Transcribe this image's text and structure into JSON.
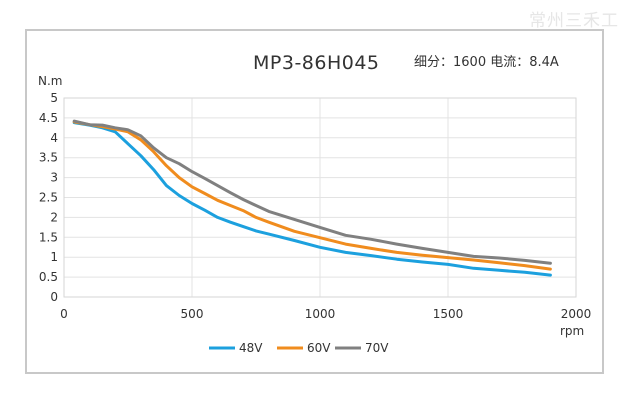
{
  "watermark": "常州三禾工",
  "chart_data": {
    "type": "line",
    "title": "MP3-86H045",
    "subtitle": "细分：1600 电流：8.4A",
    "xlabel": "rpm",
    "ylabel": "N.m",
    "xlim": [
      0,
      2000
    ],
    "ylim": [
      0,
      5
    ],
    "xticks": [
      0,
      500,
      1000,
      1500,
      2000
    ],
    "yticks": [
      0,
      0.5,
      1,
      1.5,
      2,
      2.5,
      3,
      3.5,
      4,
      4.5,
      5
    ],
    "ytick_labels": [
      "0",
      "0.5",
      "1",
      "1.5",
      "2",
      "2.5",
      "3",
      "3.5",
      "4",
      "4.5",
      "5"
    ],
    "grid": true,
    "legend_position": "bottom-center",
    "series": [
      {
        "name": "48V",
        "color": "#1ca0de",
        "x": [
          40,
          100,
          150,
          200,
          250,
          300,
          350,
          400,
          450,
          500,
          550,
          600,
          650,
          700,
          750,
          800,
          900,
          1000,
          1100,
          1200,
          1300,
          1400,
          1500,
          1600,
          1700,
          1800,
          1900
        ],
        "y": [
          4.38,
          4.32,
          4.25,
          4.15,
          3.85,
          3.55,
          3.2,
          2.8,
          2.55,
          2.35,
          2.18,
          2.0,
          1.88,
          1.77,
          1.66,
          1.58,
          1.42,
          1.25,
          1.12,
          1.04,
          0.95,
          0.88,
          0.82,
          0.72,
          0.67,
          0.62,
          0.55
        ]
      },
      {
        "name": "60V",
        "color": "#f08c1e",
        "x": [
          40,
          100,
          150,
          200,
          250,
          300,
          350,
          400,
          450,
          500,
          550,
          600,
          650,
          700,
          750,
          800,
          900,
          1000,
          1100,
          1200,
          1300,
          1400,
          1500,
          1600,
          1700,
          1800,
          1900
        ],
        "y": [
          4.4,
          4.33,
          4.28,
          4.22,
          4.15,
          3.95,
          3.65,
          3.3,
          3.0,
          2.77,
          2.6,
          2.43,
          2.3,
          2.17,
          2.0,
          1.88,
          1.65,
          1.49,
          1.33,
          1.22,
          1.12,
          1.05,
          0.99,
          0.93,
          0.86,
          0.79,
          0.7
        ]
      },
      {
        "name": "70V",
        "color": "#808080",
        "x": [
          40,
          100,
          150,
          200,
          250,
          300,
          350,
          400,
          450,
          500,
          550,
          600,
          650,
          700,
          750,
          800,
          900,
          1000,
          1100,
          1200,
          1300,
          1400,
          1500,
          1600,
          1700,
          1800,
          1900
        ],
        "y": [
          4.42,
          4.33,
          4.32,
          4.25,
          4.2,
          4.05,
          3.75,
          3.5,
          3.35,
          3.15,
          2.98,
          2.8,
          2.62,
          2.45,
          2.3,
          2.15,
          1.95,
          1.75,
          1.55,
          1.45,
          1.33,
          1.22,
          1.12,
          1.02,
          0.98,
          0.92,
          0.85
        ]
      }
    ]
  }
}
